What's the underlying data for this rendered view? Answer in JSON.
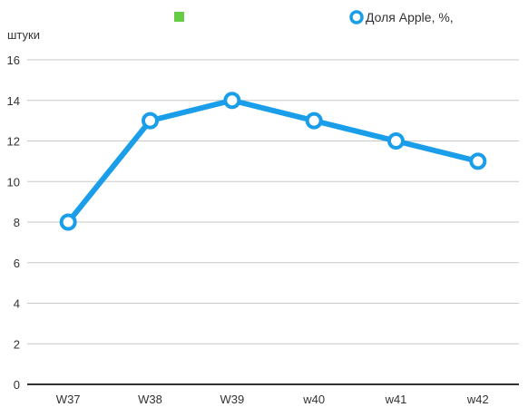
{
  "chart_data": {
    "type": "line",
    "title": "",
    "xlabel": "",
    "ylabel": "штуки",
    "categories": [
      "W37",
      "W38",
      "W39",
      "w40",
      "w41",
      "w42"
    ],
    "ylim": [
      0,
      16
    ],
    "yticks": [
      0,
      2,
      4,
      6,
      8,
      10,
      12,
      14,
      16
    ],
    "grid": true,
    "legend_position": "top",
    "legend": [
      {
        "name": "",
        "color": "#66cc44",
        "marker": "square"
      },
      {
        "name": "Доля Apple, %,",
        "color": "#1a9eea",
        "marker": "circle"
      }
    ],
    "series": [
      {
        "name": "Доля Apple, %,",
        "color": "#1a9eea",
        "values": [
          8,
          13,
          14,
          13,
          12,
          11
        ]
      }
    ]
  }
}
